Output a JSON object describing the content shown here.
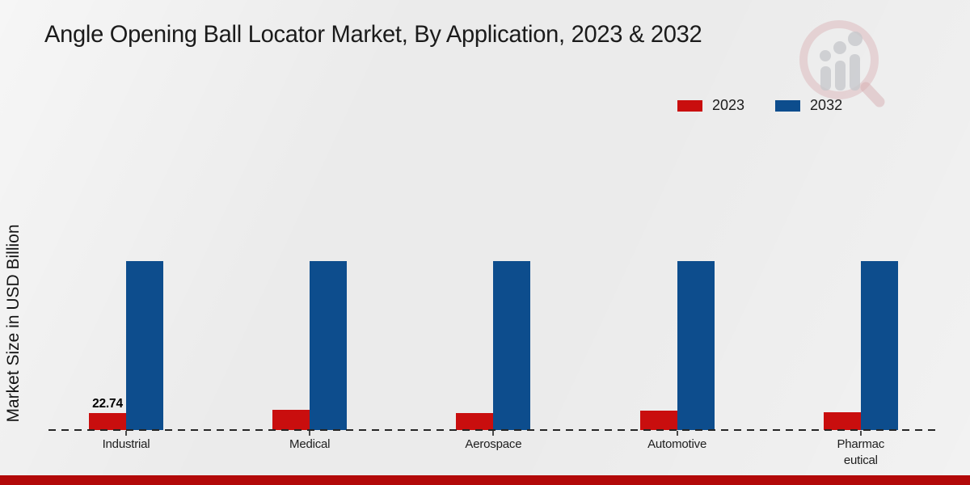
{
  "title": "Angle Opening Ball Locator Market, By Application, 2023 & 2032",
  "ylabel": "Market Size in USD Billion",
  "legend": {
    "items": [
      {
        "label": "2023",
        "color": "#c90e0e"
      },
      {
        "label": "2032",
        "color": "#0d4d8d"
      }
    ]
  },
  "watermark": {
    "name": "magnifier-bar-chart-logo",
    "ring_color": "#d98f94",
    "bars_color": "#b8bac0"
  },
  "footer": {
    "color": "#b20909"
  },
  "chart_data": {
    "type": "bar",
    "title": "Angle Opening Ball Locator Market, By Application, 2023 & 2032",
    "xlabel": "",
    "ylabel": "Market Size in USD Billion",
    "categories": [
      "Industrial",
      "Medical",
      "Aerospace",
      "Automotive",
      "Pharmaceutical"
    ],
    "tick_labels": [
      "Industrial",
      "Medical",
      "Aerospace",
      "Automotive",
      "Pharmac\neutical"
    ],
    "series": [
      {
        "name": "2023",
        "color": "#c90e0e",
        "values": [
          22.74,
          27.1,
          22.9,
          26.4,
          24.5
        ]
      },
      {
        "name": "2032",
        "color": "#0d4d8d",
        "values": [
          230,
          230,
          230,
          230,
          230
        ]
      }
    ],
    "data_labels": [
      {
        "series": "2023",
        "category": "Industrial",
        "text": "22.74"
      }
    ],
    "ylim": [
      0,
      250
    ],
    "grid": false,
    "legend_position": "top-right",
    "baseline_style": "dashed"
  }
}
